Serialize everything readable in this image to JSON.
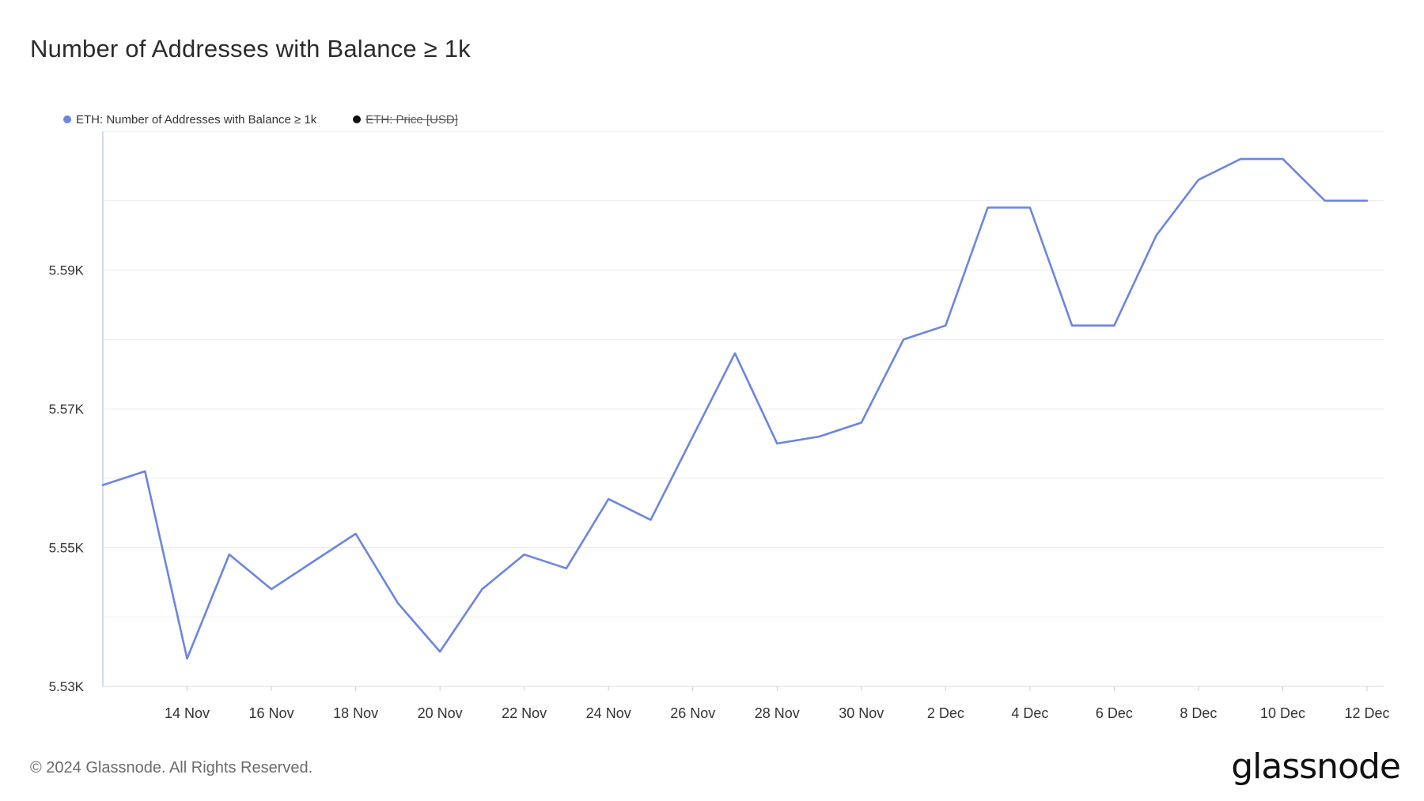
{
  "title": "Number of Addresses with Balance ≥ 1k",
  "legend": [
    {
      "label": "ETH: Number of Addresses with Balance ≥ 1k",
      "color": "#6b85e0",
      "active": true
    },
    {
      "label": "ETH: Price [USD]",
      "color": "#111111",
      "active": false
    }
  ],
  "footer": {
    "copyright": "© 2024 Glassnode. All Rights Reserved.",
    "brand": "glassnode"
  },
  "chart_data": {
    "type": "line",
    "title": "Number of Addresses with Balance ≥ 1k",
    "xlabel": "",
    "ylabel": "",
    "ylim": [
      5530,
      5610
    ],
    "y_ticks": [
      5530,
      5550,
      5570,
      5590
    ],
    "y_tick_labels": [
      "5.53K",
      "5.55K",
      "5.57K",
      "5.59K"
    ],
    "x_tick_labels": [
      "14 Nov",
      "16 Nov",
      "18 Nov",
      "20 Nov",
      "22 Nov",
      "24 Nov",
      "26 Nov",
      "28 Nov",
      "30 Nov",
      "2 Dec",
      "4 Dec",
      "6 Dec",
      "8 Dec",
      "10 Dec",
      "12 Dec"
    ],
    "grid": true,
    "legend_position": "top-left",
    "series": [
      {
        "name": "ETH: Number of Addresses with Balance ≥ 1k",
        "color": "#6b85e0",
        "x": [
          "12 Nov",
          "13 Nov",
          "14 Nov",
          "15 Nov",
          "16 Nov",
          "17 Nov",
          "18 Nov",
          "19 Nov",
          "20 Nov",
          "21 Nov",
          "22 Nov",
          "23 Nov",
          "24 Nov",
          "25 Nov",
          "26 Nov",
          "27 Nov",
          "28 Nov",
          "29 Nov",
          "30 Nov",
          "1 Dec",
          "2 Dec",
          "3 Dec",
          "4 Dec",
          "5 Dec",
          "6 Dec",
          "7 Dec",
          "8 Dec",
          "9 Dec",
          "10 Dec",
          "11 Dec",
          "12 Dec"
        ],
        "values": [
          5559,
          5561,
          5534,
          5549,
          5544,
          5548,
          5552,
          5542,
          5535,
          5544,
          5549,
          5547,
          5557,
          5554,
          5566,
          5578,
          5565,
          5566,
          5568,
          5580,
          5582,
          5599,
          5599,
          5582,
          5582,
          5595,
          5603,
          5606,
          5606,
          5600,
          5600
        ]
      }
    ]
  }
}
